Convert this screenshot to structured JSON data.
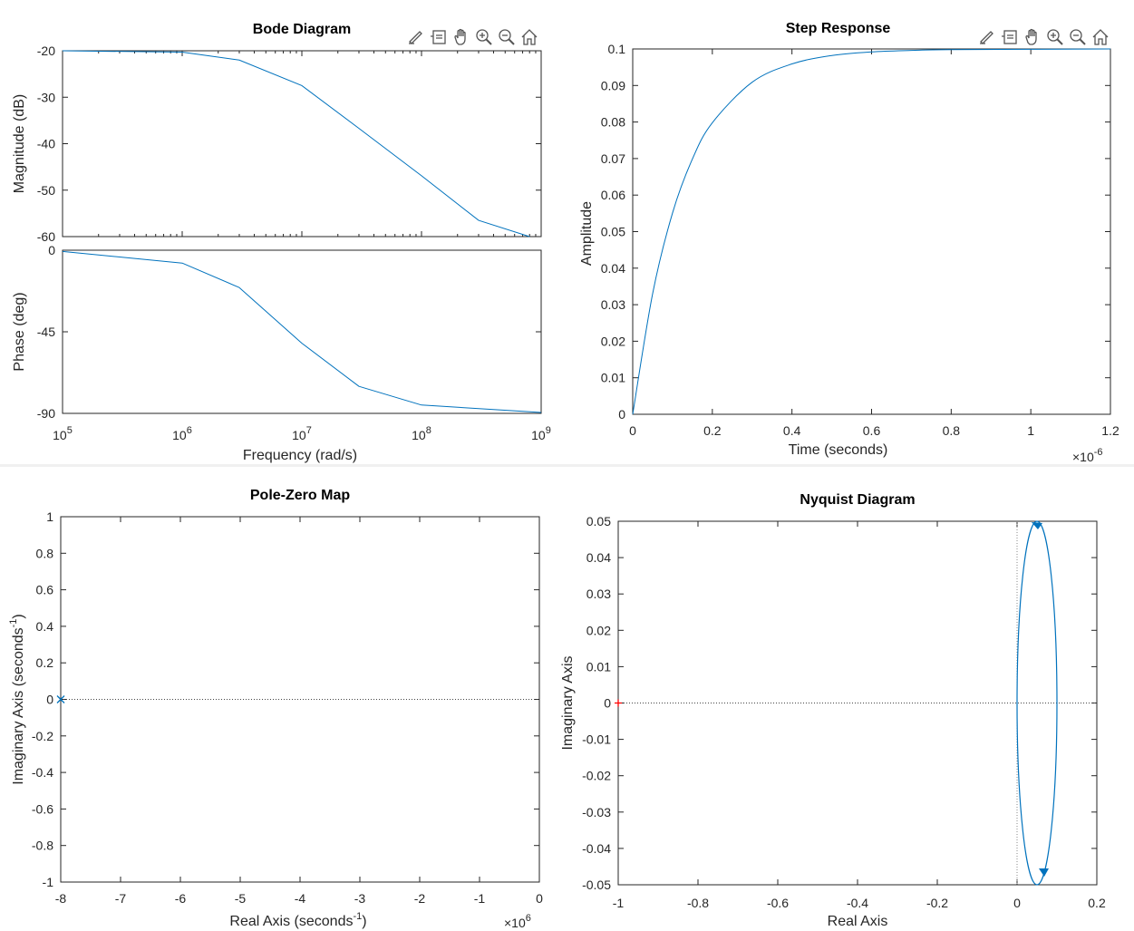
{
  "window": {
    "background": "#f0f0f0"
  },
  "colors": {
    "line": "#0072bd",
    "axis": "#262626",
    "pz_marker": "#0072bd",
    "critical_point": "#ff0000"
  },
  "toolbar": {
    "icons": [
      "brush-icon",
      "datatip-icon",
      "pan-hand-icon",
      "zoom-in-icon",
      "zoom-out-icon",
      "home-icon"
    ]
  },
  "chart_data": [
    {
      "id": "bode",
      "type": "line",
      "title": "Bode Diagram",
      "xlabel": "Frequency  (rad/s)",
      "xscale": "log",
      "x_tick_labels": [
        {
          "base": "10",
          "exp": "5"
        },
        {
          "base": "10",
          "exp": "6"
        },
        {
          "base": "10",
          "exp": "7"
        },
        {
          "base": "10",
          "exp": "8"
        },
        {
          "base": "10",
          "exp": "9"
        }
      ],
      "magnitude": {
        "ylabel": "Magnitude (dB)",
        "ylim": [
          -60,
          -20
        ],
        "yticks": [
          "-20",
          "-30",
          "-40",
          "-50",
          "-60"
        ],
        "x": [
          100000,
          1000000,
          3000000,
          10000000,
          30000000,
          100000000,
          300000000,
          800000000
        ],
        "values": [
          -20,
          -20.3,
          -22.0,
          -27.5,
          -36.7,
          -46.9,
          -56.5,
          -60
        ]
      },
      "phase": {
        "ylabel": "Phase (deg)",
        "ylim": [
          -90,
          0
        ],
        "yticks": [
          "0",
          "-45",
          "-90"
        ],
        "x": [
          100000,
          1000000,
          3000000,
          10000000,
          30000000,
          100000000,
          1000000000
        ],
        "values": [
          -0.7,
          -7.1,
          -20.6,
          -51.3,
          -75.1,
          -85.4,
          -89.5
        ]
      }
    },
    {
      "id": "step",
      "type": "line",
      "title": "Step Response",
      "xlabel": "Time (seconds)",
      "ylabel": "Amplitude",
      "x_exponent": {
        "base": "×10",
        "exp": "-6"
      },
      "xlim": [
        0,
        1.2
      ],
      "ylim": [
        0,
        0.1
      ],
      "xticks": [
        "0",
        "0.2",
        "0.4",
        "0.6",
        "0.8",
        "1",
        "1.2"
      ],
      "yticks": [
        "0",
        "0.01",
        "0.02",
        "0.03",
        "0.04",
        "0.05",
        "0.06",
        "0.07",
        "0.08",
        "0.09",
        "0.1"
      ],
      "x": [
        0,
        0.05,
        0.1,
        0.15,
        0.2,
        0.3,
        0.4,
        0.5,
        0.6,
        0.7,
        0.8,
        1.2
      ],
      "values": [
        0,
        0.033,
        0.0551,
        0.0699,
        0.0798,
        0.0909,
        0.0959,
        0.0982,
        0.0992,
        0.0996,
        0.0998,
        0.1
      ]
    },
    {
      "id": "pzmap",
      "type": "scatter",
      "title": "Pole-Zero Map",
      "xlabel": {
        "text": "Real Axis (seconds",
        "sup": "-1",
        "end": ")"
      },
      "ylabel": {
        "text": "Imaginary Axis (seconds",
        "sup": "-1",
        "end": ")"
      },
      "x_exponent": {
        "base": "×10",
        "exp": "6"
      },
      "xlim": [
        -8,
        0
      ],
      "ylim": [
        -1,
        1
      ],
      "xticks": [
        "-8",
        "-7",
        "-6",
        "-5",
        "-4",
        "-3",
        "-2",
        "-1",
        "0"
      ],
      "yticks": [
        "1",
        "0.8",
        "0.6",
        "0.4",
        "0.2",
        "0",
        "-0.2",
        "-0.4",
        "-0.6",
        "-0.8",
        "-1"
      ],
      "poles": [
        {
          "real": -8,
          "imag": 0
        }
      ]
    },
    {
      "id": "nyquist",
      "type": "line",
      "title": "Nyquist Diagram",
      "xlabel": "Real Axis",
      "ylabel": "Imaginary Axis",
      "xlim": [
        -1,
        0.2
      ],
      "ylim": [
        -0.05,
        0.05
      ],
      "xticks": [
        "-1",
        "-0.8",
        "-0.6",
        "-0.4",
        "-0.2",
        "0",
        "0.2"
      ],
      "yticks": [
        "0.05",
        "0.04",
        "0.03",
        "0.02",
        "0.01",
        "0",
        "-0.01",
        "-0.02",
        "-0.03",
        "-0.04",
        "-0.05"
      ],
      "circle": {
        "center_real": 0.05,
        "center_imag": 0,
        "radius": 0.05
      },
      "critical_point": {
        "real": -1,
        "imag": 0
      }
    }
  ]
}
